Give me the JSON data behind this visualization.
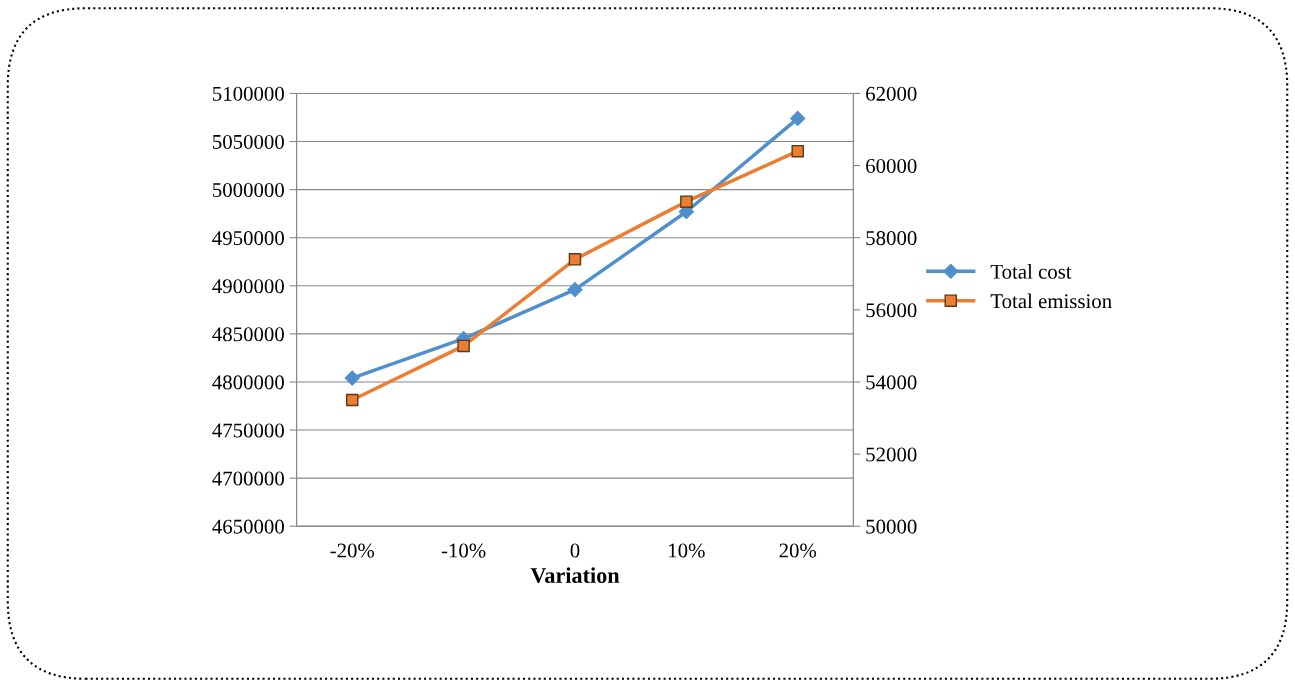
{
  "chart_data": {
    "type": "line",
    "xlabel": "Variation",
    "categories": [
      "-20%",
      "-10%",
      "0",
      "10%",
      "20%"
    ],
    "series": [
      {
        "name": "Total cost",
        "color": "#4f8fcc",
        "marker": "diamond",
        "values": [
          4804000,
          4845000,
          4896000,
          4977000,
          5074000
        ]
      },
      {
        "name": "Total emission",
        "color": "#ed7d31",
        "marker": "square",
        "axis": "y2",
        "values": [
          53500,
          55000,
          57400,
          59000,
          60400
        ]
      }
    ],
    "ylim": [
      4650000,
      5100000
    ],
    "yticks": [
      4650000,
      4700000,
      4750000,
      4800000,
      4850000,
      4900000,
      4950000,
      5000000,
      5050000,
      5100000
    ],
    "y2lim": [
      50000,
      62000
    ],
    "y2ticks": [
      50000,
      52000,
      54000,
      56000,
      58000,
      60000,
      62000
    ],
    "grid": "y",
    "legend": "right"
  }
}
